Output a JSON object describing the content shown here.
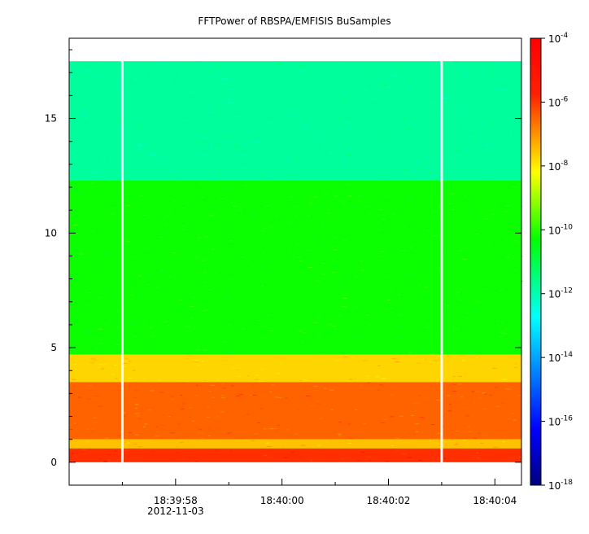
{
  "chart_data": {
    "type": "heatmap",
    "title": "FFTPower of RBSPA/EMFISIS  BuSamples",
    "xlabel": "",
    "ylabel": "",
    "x_tick_labels": [
      "18:39:58",
      "18:40:00",
      "18:40:02",
      "18:40:04"
    ],
    "x_date_label": "2012-11-03",
    "x_ticks_seconds": [
      58,
      60,
      62,
      64
    ],
    "xlim_seconds": [
      56.0,
      64.5
    ],
    "y_ticks": [
      0,
      5,
      10,
      15
    ],
    "ylim": [
      -1,
      18.5
    ],
    "data_y_range": [
      0,
      17.5
    ],
    "colorbar": {
      "scale": "log",
      "range": [
        1e-18,
        0.0001
      ],
      "labels": [
        {
          "base": "10",
          "exp": "-4"
        },
        {
          "base": "10",
          "exp": "-6"
        },
        {
          "base": "10",
          "exp": "-8"
        },
        {
          "base": "10",
          "exp": "-10"
        },
        {
          "base": "10",
          "exp": "-12"
        },
        {
          "base": "10",
          "exp": "-14"
        },
        {
          "base": "10",
          "exp": "-16"
        },
        {
          "base": "10",
          "exp": "-18"
        }
      ]
    },
    "bands": [
      {
        "y_from": 12.3,
        "y_to": 17.5,
        "log_power": -11.8
      },
      {
        "y_from": 4.7,
        "y_to": 12.3,
        "log_power": -10.2
      },
      {
        "y_from": 3.5,
        "y_to": 4.7,
        "log_power": -7.8
      },
      {
        "y_from": 1.0,
        "y_to": 3.5,
        "log_power": -6.7
      },
      {
        "y_from": 0.6,
        "y_to": 1.0,
        "log_power": -7.6
      },
      {
        "y_from": 0.0,
        "y_to": 0.6,
        "log_power": -6.2
      }
    ],
    "gaps_seconds": [
      57.0,
      63.0
    ],
    "colors": {
      "colormap": [
        "#00007f",
        "#0000ff",
        "#00ffff",
        "#00ff00",
        "#ffff00",
        "#ff0000",
        "#7f0000"
      ]
    }
  }
}
